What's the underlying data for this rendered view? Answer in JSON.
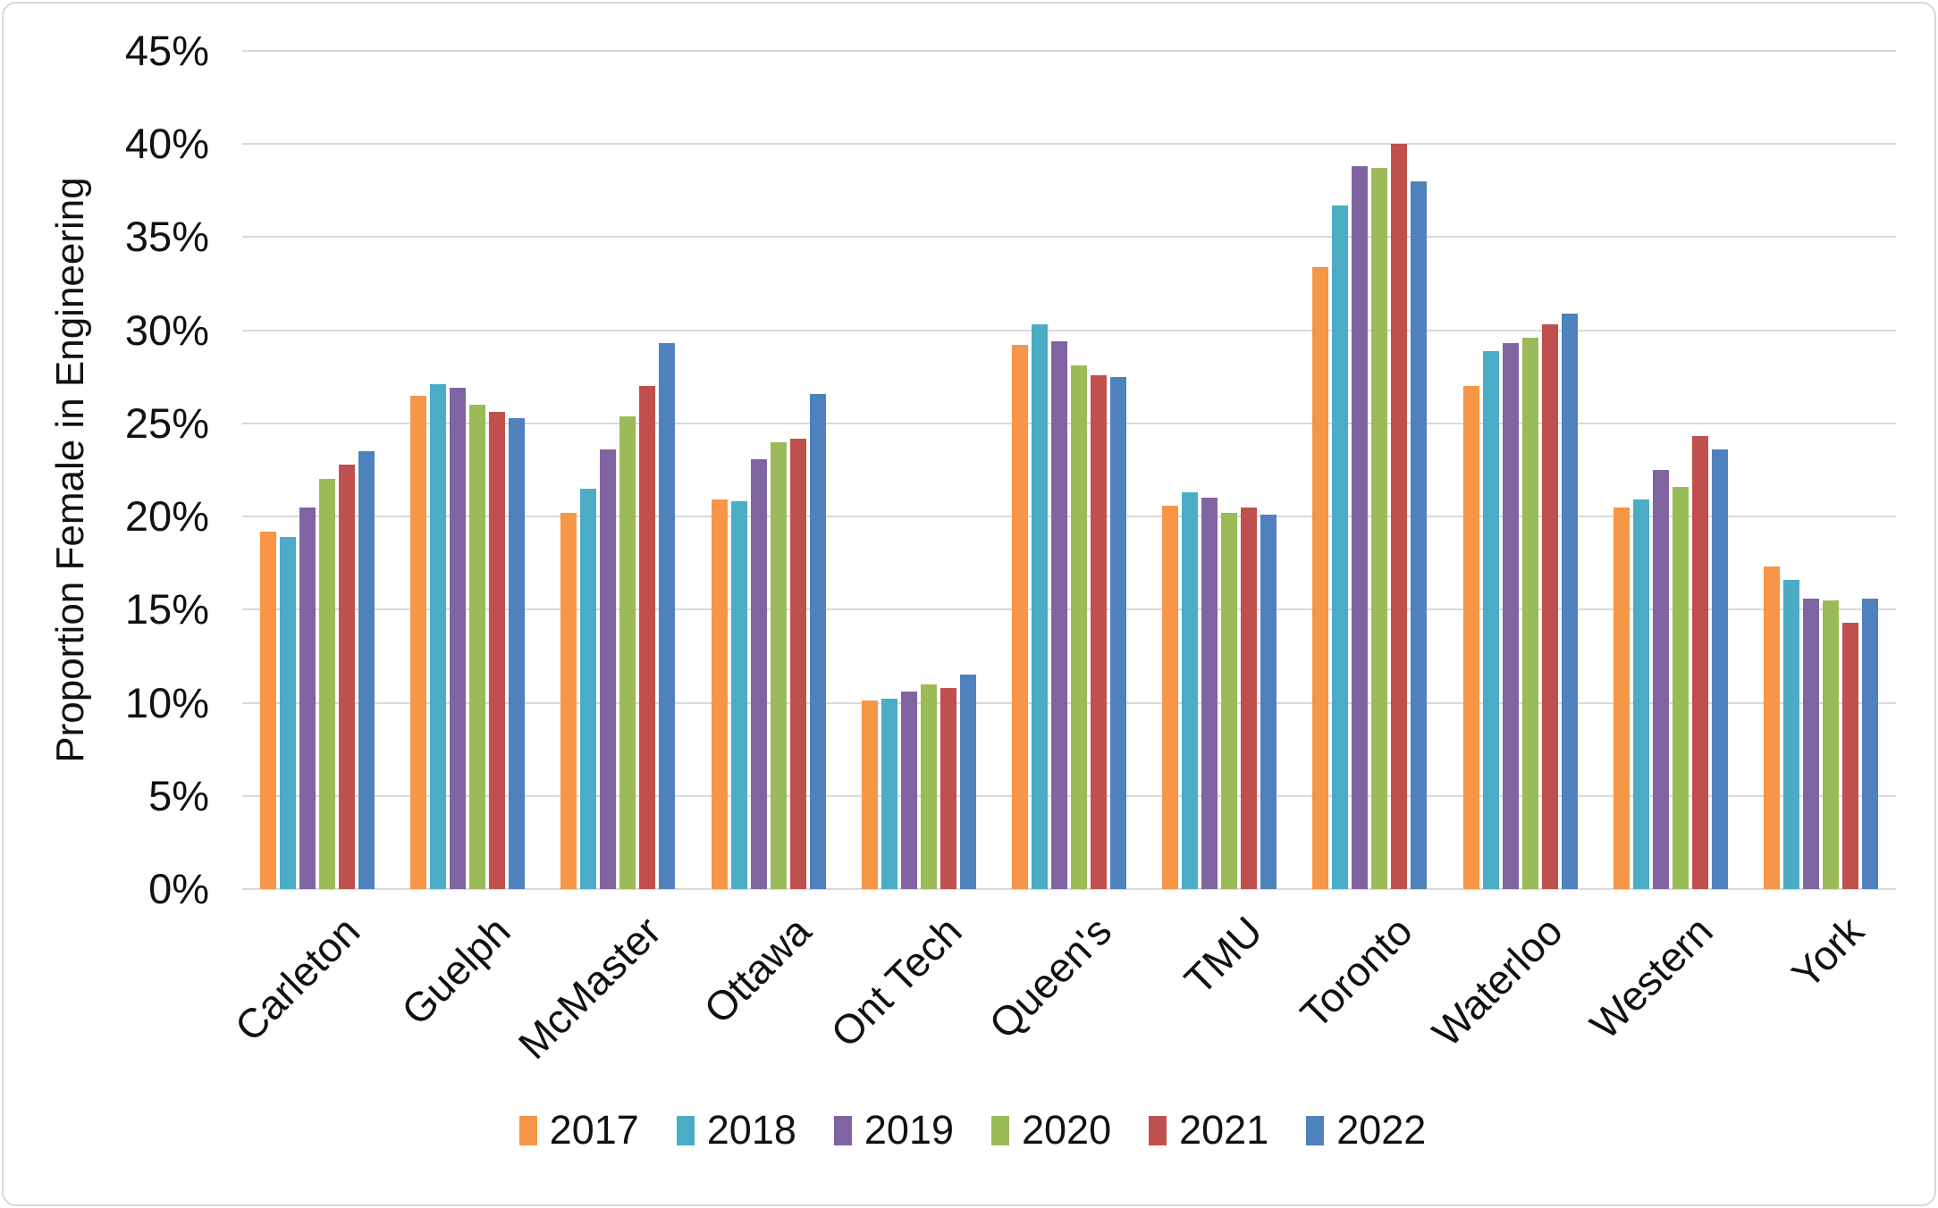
{
  "chart_data": {
    "type": "bar",
    "title": "",
    "xlabel": "",
    "ylabel": "Proportion Female in Engineering",
    "ylim": [
      0,
      45
    ],
    "y_tick_step": 5,
    "y_ticks": [
      "0%",
      "5%",
      "10%",
      "15%",
      "20%",
      "25%",
      "30%",
      "35%",
      "40%",
      "45%"
    ],
    "grid": "horizontal",
    "legend_position": "bottom-center",
    "categories": [
      "Carleton",
      "Guelph",
      "McMaster",
      "Ottawa",
      "Ont Tech",
      "Queen's",
      "TMU",
      "Toronto",
      "Waterloo",
      "Western",
      "York"
    ],
    "series": [
      {
        "name": "2017",
        "color": "#F79646",
        "values": [
          19.2,
          26.5,
          20.2,
          20.9,
          10.1,
          29.2,
          20.6,
          33.4,
          27.0,
          20.5,
          17.3
        ]
      },
      {
        "name": "2018",
        "color": "#4BACC6",
        "values": [
          18.9,
          27.1,
          21.5,
          20.8,
          10.2,
          30.3,
          21.3,
          36.7,
          28.9,
          20.9,
          16.6
        ]
      },
      {
        "name": "2019",
        "color": "#8064A2",
        "values": [
          20.5,
          26.9,
          23.6,
          23.1,
          10.6,
          29.4,
          21.0,
          38.8,
          29.3,
          22.5,
          15.6
        ]
      },
      {
        "name": "2020",
        "color": "#9BBB59",
        "values": [
          22.0,
          26.0,
          25.4,
          24.0,
          11.0,
          28.1,
          20.2,
          38.7,
          29.6,
          21.6,
          15.5
        ]
      },
      {
        "name": "2021",
        "color": "#C0504D",
        "values": [
          22.8,
          25.6,
          27.0,
          24.2,
          10.8,
          27.6,
          20.5,
          40.0,
          30.3,
          24.3,
          14.3
        ]
      },
      {
        "name": "2022",
        "color": "#4F81BD",
        "values": [
          23.5,
          25.3,
          29.3,
          26.6,
          11.5,
          27.5,
          20.1,
          38.0,
          30.9,
          23.6,
          15.6
        ]
      }
    ]
  },
  "colors": {
    "background": "#FFFFFF",
    "frame_border": "#D9D9D9",
    "gridline": "#D9D9D9",
    "text": "#111111"
  }
}
